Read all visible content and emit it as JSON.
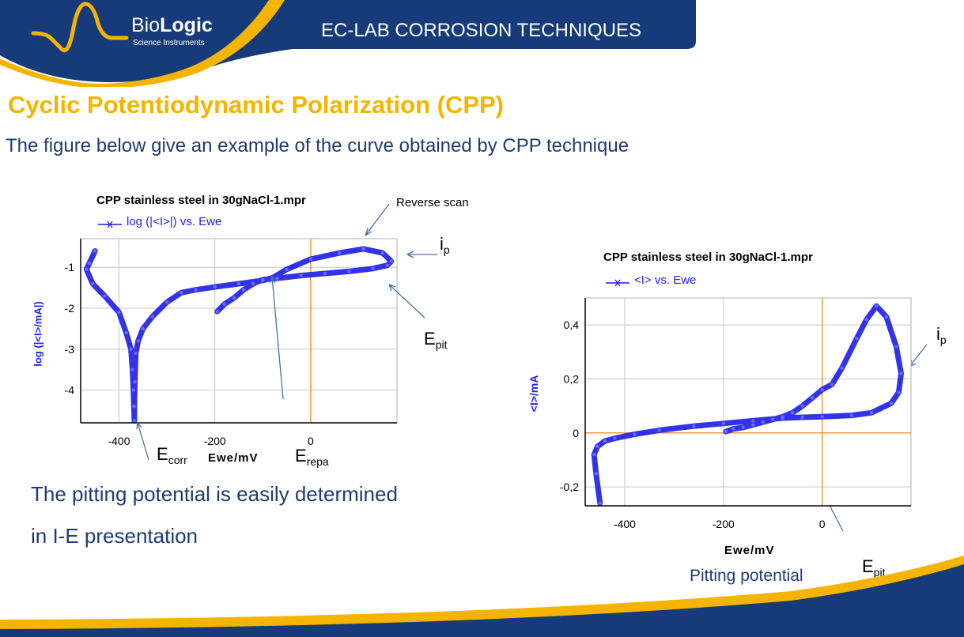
{
  "header": {
    "brand_main": "Bio",
    "brand_bold": "Logic",
    "brand_sub": "Science Instruments",
    "section_title": "EC-LAB CORROSION TECHNIQUES"
  },
  "page": {
    "title": "Cyclic Potentiodynamic Polarization (CPP)",
    "subtitle": "The figure below give an example of the curve obtained by CPP technique",
    "note_line1": "The pitting potential is easily determined",
    "note_line2": "in I-E presentation"
  },
  "colors": {
    "navy": "#163b78",
    "gold": "#f5b400",
    "curve": "#1c1ce6",
    "marker_line": "#f08c1a"
  },
  "chart_data": [
    {
      "type": "line",
      "title": "CPP stainless steel in 30gNaCl-1.mpr",
      "legend": [
        "log (|<I>|) vs. Ewe"
      ],
      "xlabel": "Ewe/mV",
      "ylabel": "log (|<I>/mA|)",
      "xlim": [
        -480,
        180
      ],
      "ylim": [
        -4.8,
        -0.3
      ],
      "xticks": [
        "-400",
        "-200",
        "0"
      ],
      "yticks": [
        "-1",
        "-2",
        "-3",
        "-4"
      ],
      "grid": true,
      "series": [
        {
          "x": [
            -450,
            -462,
            -468,
            -455,
            -430,
            -400,
            -385,
            -375,
            -372,
            -370,
            -369,
            -368,
            -368,
            -367,
            -365,
            -360,
            -350,
            -330,
            -300,
            -270,
            -240,
            -200,
            -150,
            -100,
            -80,
            -50,
            0,
            60,
            110,
            150,
            168,
            160,
            130,
            80,
            30,
            -20,
            -70,
            -100,
            -120,
            -140,
            -160,
            -180,
            -195
          ],
          "y": [
            -0.6,
            -0.9,
            -1.05,
            -1.4,
            -1.7,
            -2.1,
            -2.6,
            -3.0,
            -3.5,
            -4.0,
            -4.4,
            -4.75,
            -4.4,
            -3.8,
            -3.1,
            -2.8,
            -2.5,
            -2.2,
            -1.85,
            -1.62,
            -1.55,
            -1.48,
            -1.4,
            -1.32,
            -1.26,
            -1.05,
            -0.8,
            -0.65,
            -0.55,
            -0.65,
            -0.85,
            -0.95,
            -1.03,
            -1.1,
            -1.15,
            -1.2,
            -1.27,
            -1.3,
            -1.4,
            -1.55,
            -1.75,
            -1.9,
            -2.08
          ]
        }
      ],
      "markers": {
        "vertical_x": 0
      },
      "annotations": {
        "reverse_scan": "Reverse scan",
        "ip_main": "i",
        "ip_sub": "p",
        "epit_main": "E",
        "epit_sub": "pit",
        "ecorr_main": "E",
        "ecorr_sub": "corr",
        "erepa_main": "E",
        "erepa_sub": "repa"
      }
    },
    {
      "type": "line",
      "title": "CPP stainless steel in 30gNaCl-1.mpr",
      "legend": [
        "<I> vs. Ewe"
      ],
      "xlabel": "Ewe/mV",
      "ylabel": "<I>/mA",
      "xlim": [
        -480,
        180
      ],
      "ylim": [
        -0.27,
        0.5
      ],
      "xticks": [
        "-400",
        "-200",
        "0"
      ],
      "yticks": [
        "0,4",
        "0,2",
        "0",
        "-0,2"
      ],
      "grid": true,
      "series": [
        {
          "x": [
            -450,
            -458,
            -462,
            -455,
            -440,
            -420,
            -380,
            -330,
            -260,
            -200,
            -140,
            -80,
            -40,
            0,
            60,
            100,
            140,
            155,
            160,
            150,
            130,
            110,
            90,
            70,
            40,
            20,
            0,
            -20,
            -40,
            -60,
            -80,
            -100,
            -120,
            -140,
            -160,
            -180,
            -195
          ],
          "y": [
            -0.26,
            -0.15,
            -0.08,
            -0.05,
            -0.03,
            -0.02,
            -0.005,
            0.01,
            0.025,
            0.035,
            0.045,
            0.055,
            0.058,
            0.06,
            0.065,
            0.075,
            0.11,
            0.15,
            0.22,
            0.32,
            0.43,
            0.47,
            0.42,
            0.35,
            0.24,
            0.18,
            0.16,
            0.13,
            0.1,
            0.075,
            0.06,
            0.05,
            0.04,
            0.03,
            0.02,
            0.015,
            0.005
          ]
        }
      ],
      "markers": {
        "vertical_x": 0,
        "horizontal_y": 0
      },
      "annotations": {
        "ip_main": "i",
        "ip_sub": "p",
        "epit_main": "E",
        "epit_sub": "pit",
        "pitting_label": "Pitting potential"
      }
    }
  ]
}
